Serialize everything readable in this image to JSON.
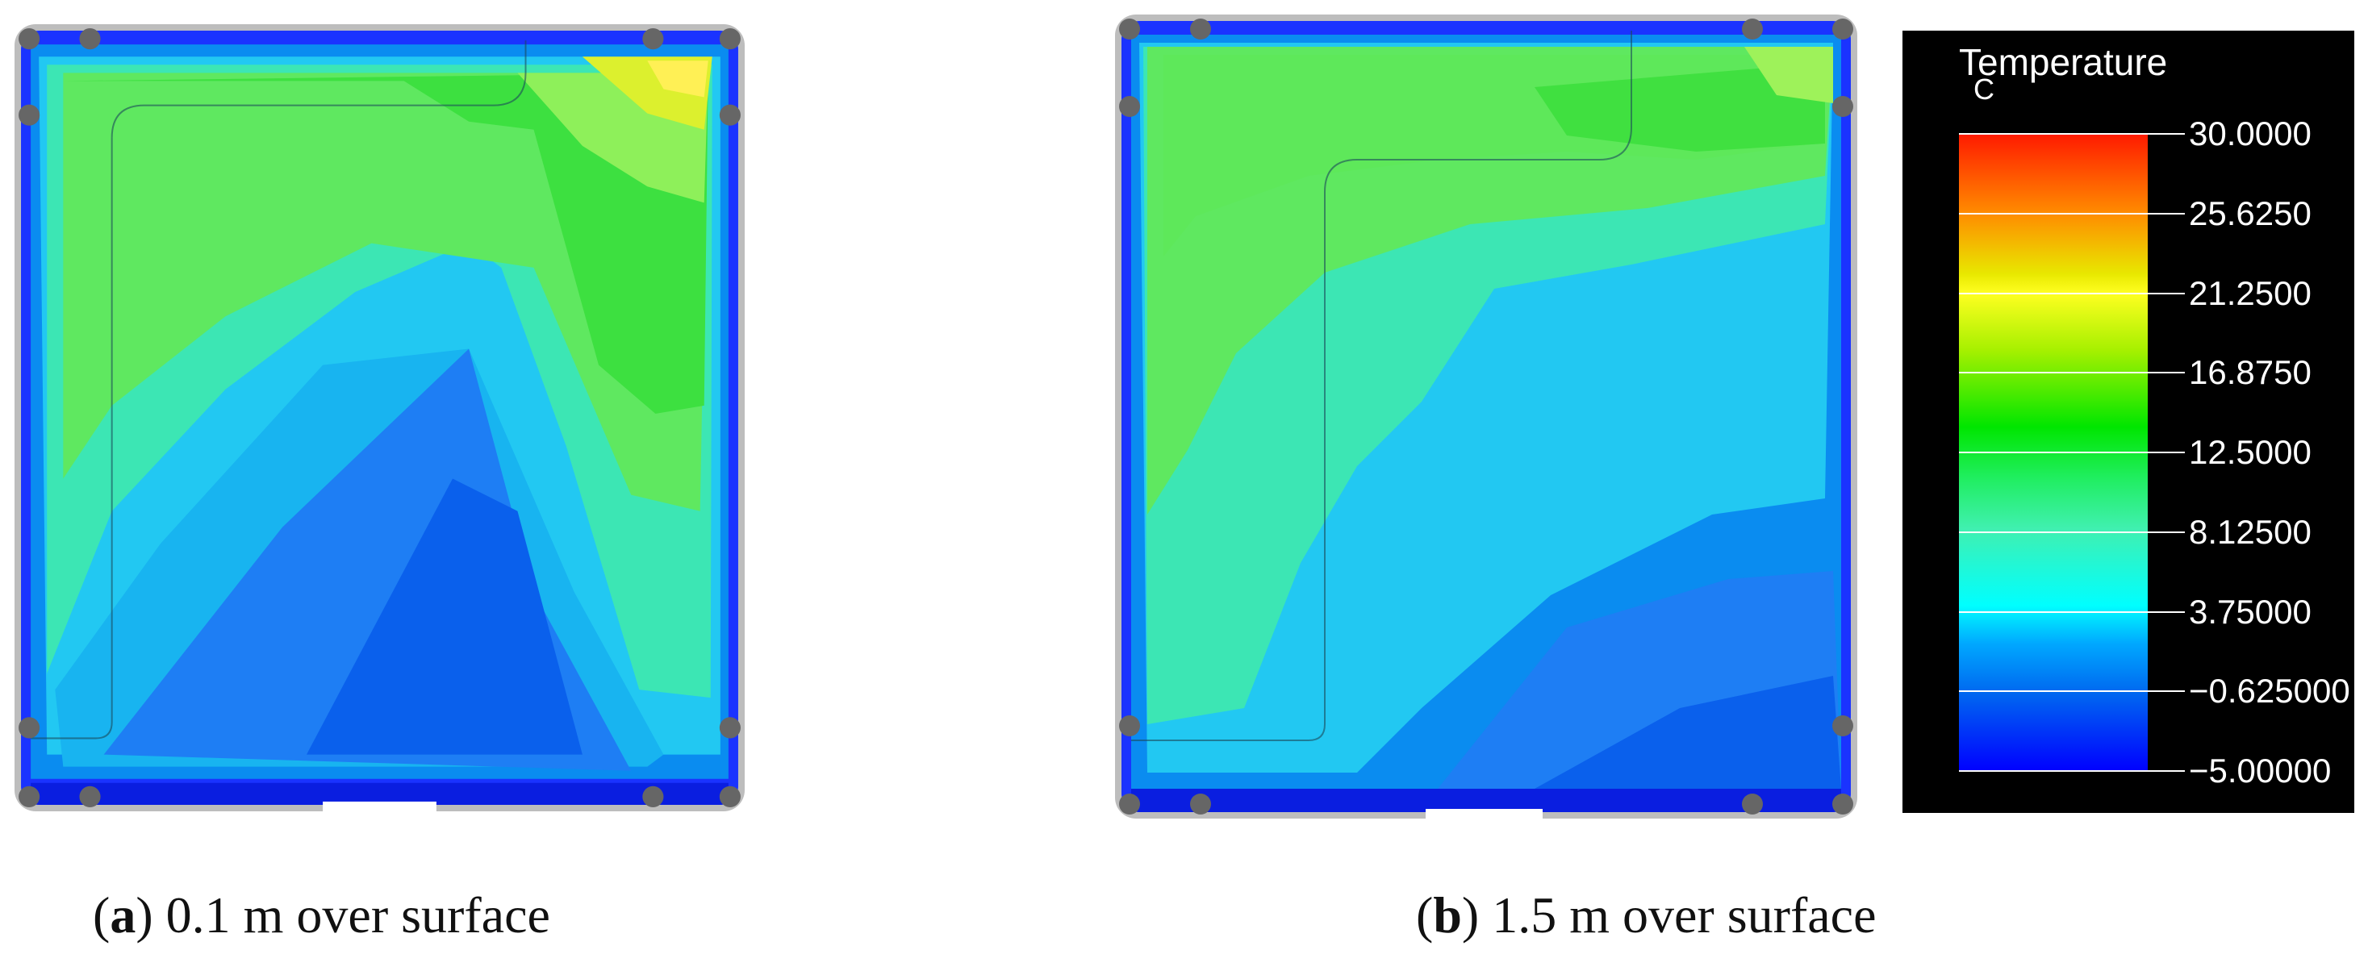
{
  "panels": [
    {
      "id": "a",
      "letter": "a",
      "caption_text": " 0.1 m over surface"
    },
    {
      "id": "b",
      "letter": "b",
      "caption_text": " 1.5 m over surface"
    }
  ],
  "legend": {
    "title": "Temperature",
    "unit": "C",
    "ticks": [
      {
        "value": "30.0000",
        "fraction": 0.0
      },
      {
        "value": "25.6250",
        "fraction": 0.125
      },
      {
        "value": "21.2500",
        "fraction": 0.25
      },
      {
        "value": "16.8750",
        "fraction": 0.375
      },
      {
        "value": "12.5000",
        "fraction": 0.5
      },
      {
        "value": "8.12500",
        "fraction": 0.625
      },
      {
        "value": "3.75000",
        "fraction": 0.75
      },
      {
        "value": "−0.625000",
        "fraction": 0.875
      },
      {
        "value": "−5.00000",
        "fraction": 1.0
      }
    ]
  },
  "colors": {
    "frame": "#bdbdbd",
    "node": "#666666",
    "cold": "#0a2cff",
    "warm": "#ffee00"
  }
}
